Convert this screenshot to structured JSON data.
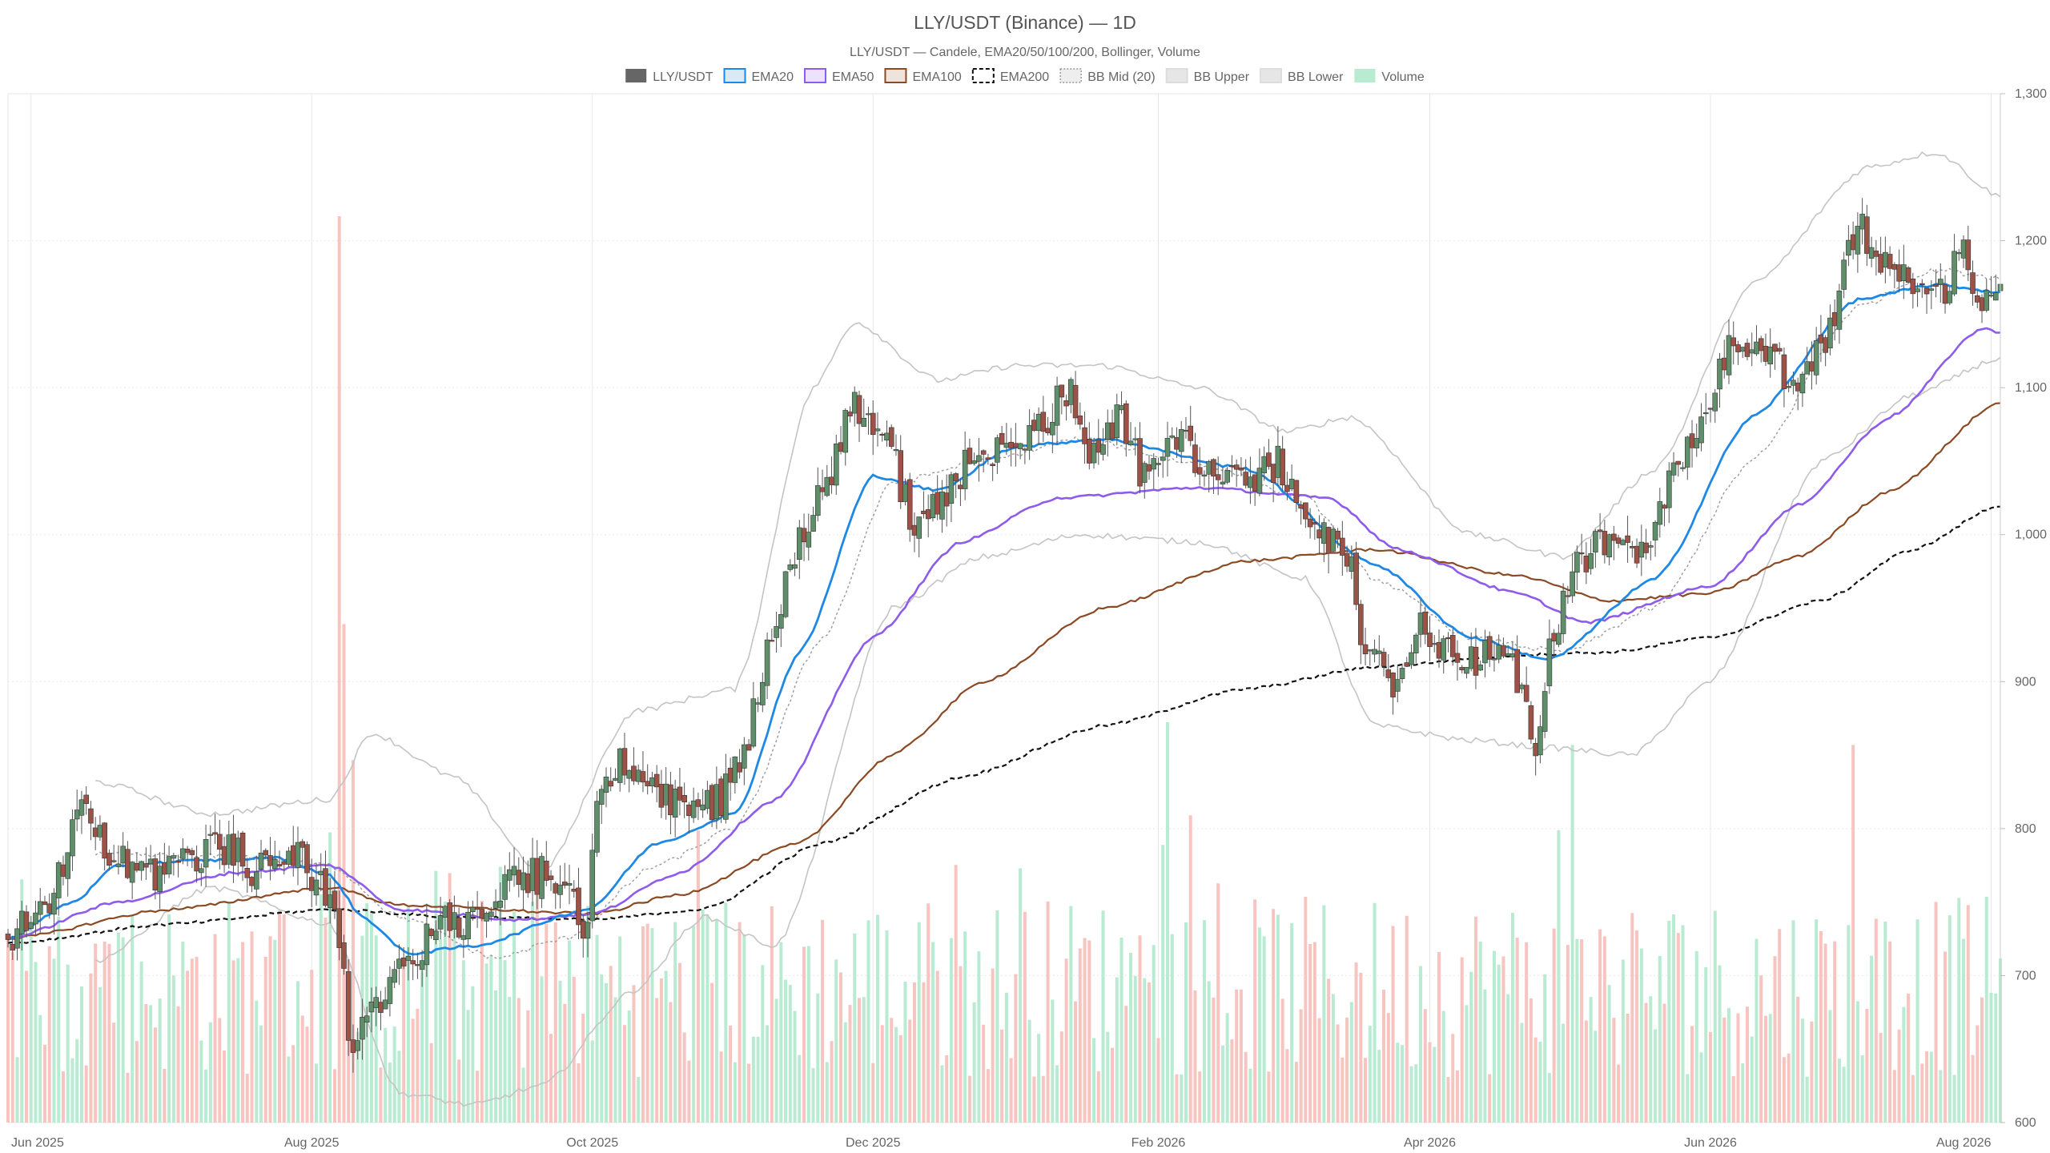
{
  "chart_data": {
    "type": "candlestick",
    "title": "LLY/USDT (Binance) — 1D",
    "subtitle": "LLY/USDT — Candele, EMA20/50/100/200, Bollinger, Volume",
    "legend": [
      {
        "label": "LLY/USDT",
        "color": "#666666",
        "style": "solid-fill"
      },
      {
        "label": "EMA20",
        "color": "#1e88e5",
        "style": "line"
      },
      {
        "label": "EMA50",
        "color": "#8e5bea",
        "style": "line"
      },
      {
        "label": "EMA100",
        "color": "#8b4a23",
        "style": "line"
      },
      {
        "label": "EMA200",
        "color": "#111111",
        "style": "dashed"
      },
      {
        "label": "BB Mid (20)",
        "color": "#999999",
        "style": "dotted"
      },
      {
        "label": "BB Upper",
        "color": "#bbbbbb",
        "style": "line"
      },
      {
        "label": "BB Lower",
        "color": "#bbbbbb",
        "style": "line"
      },
      {
        "label": "Volume",
        "color": "#b9ebd2",
        "style": "fill"
      }
    ],
    "legend_placement": "top-center",
    "y_axis": {
      "position": "right",
      "range": [
        600,
        1300
      ],
      "ticks": [
        "600",
        "700",
        "800",
        "900",
        "1,000",
        "1,100",
        "1,200",
        "1,300"
      ]
    },
    "x_axis": {
      "ticks": [
        "Jun 2025",
        "Aug 2025",
        "Oct 2025",
        "Dec 2025",
        "Feb 2026",
        "Apr 2026",
        "Jun 2026",
        "Aug 2026"
      ],
      "range": [
        "2025-05-27",
        "2026-08-03"
      ]
    },
    "grid": true,
    "colors": {
      "up": "#5f8f6a",
      "down": "#9c5246",
      "vol_up": "#b9ebd2",
      "vol_down": "#f7c4c0"
    },
    "close_anchors": [
      [
        "2025-05-27",
        725
      ],
      [
        "2025-06-05",
        755
      ],
      [
        "2025-06-12",
        812
      ],
      [
        "2025-06-20",
        780
      ],
      [
        "2025-06-28",
        770
      ],
      [
        "2025-07-06",
        782
      ],
      [
        "2025-07-14",
        788
      ],
      [
        "2025-07-20",
        772
      ],
      [
        "2025-07-27",
        790
      ],
      [
        "2025-08-02",
        765
      ],
      [
        "2025-08-06",
        740
      ],
      [
        "2025-08-10",
        650
      ],
      [
        "2025-08-15",
        680
      ],
      [
        "2025-08-22",
        710
      ],
      [
        "2025-08-30",
        735
      ],
      [
        "2025-09-07",
        745
      ],
      [
        "2025-09-15",
        765
      ],
      [
        "2025-09-22",
        770
      ],
      [
        "2025-09-30",
        735
      ],
      [
        "2025-10-02",
        815
      ],
      [
        "2025-10-07",
        845
      ],
      [
        "2025-10-14",
        830
      ],
      [
        "2025-10-21",
        810
      ],
      [
        "2025-10-29",
        820
      ],
      [
        "2025-11-03",
        855
      ],
      [
        "2025-11-08",
        920
      ],
      [
        "2025-11-14",
        990
      ],
      [
        "2025-11-21",
        1035
      ],
      [
        "2025-11-27",
        1090
      ],
      [
        "2025-12-03",
        1070
      ],
      [
        "2025-12-10",
        1010
      ],
      [
        "2025-12-17",
        1030
      ],
      [
        "2025-12-24",
        1055
      ],
      [
        "2025-12-31",
        1065
      ],
      [
        "2026-01-07",
        1075
      ],
      [
        "2026-01-12",
        1100
      ],
      [
        "2026-01-18",
        1050
      ],
      [
        "2026-01-24",
        1080
      ],
      [
        "2026-01-29",
        1040
      ],
      [
        "2026-02-04",
        1065
      ],
      [
        "2026-02-12",
        1045
      ],
      [
        "2026-02-20",
        1030
      ],
      [
        "2026-02-27",
        1050
      ],
      [
        "2026-03-05",
        1010
      ],
      [
        "2026-03-10",
        1000
      ],
      [
        "2026-03-14",
        990
      ],
      [
        "2026-03-18",
        920
      ],
      [
        "2026-03-24",
        900
      ],
      [
        "2026-03-30",
        935
      ],
      [
        "2026-04-05",
        920
      ],
      [
        "2026-04-11",
        915
      ],
      [
        "2026-04-17",
        925
      ],
      [
        "2026-04-24",
        860
      ],
      [
        "2026-04-27",
        920
      ],
      [
        "2026-05-02",
        975
      ],
      [
        "2026-05-09",
        995
      ],
      [
        "2026-05-16",
        985
      ],
      [
        "2026-05-23",
        1035
      ],
      [
        "2026-05-30",
        1080
      ],
      [
        "2026-06-06",
        1130
      ],
      [
        "2026-06-13",
        1120
      ],
      [
        "2026-06-20",
        1100
      ],
      [
        "2026-06-27",
        1140
      ],
      [
        "2026-07-03",
        1210
      ],
      [
        "2026-07-08",
        1190
      ],
      [
        "2026-07-14",
        1175
      ],
      [
        "2026-07-20",
        1160
      ],
      [
        "2026-07-26",
        1195
      ],
      [
        "2026-07-30",
        1150
      ],
      [
        "2026-08-03",
        1175
      ]
    ],
    "indicator_anchors": {
      "ema20": [
        [
          "2025-05-27",
          725
        ],
        [
          "2025-06-10",
          750
        ],
        [
          "2025-06-20",
          775
        ],
        [
          "2025-07-06",
          778
        ],
        [
          "2025-07-25",
          780
        ],
        [
          "2025-08-05",
          768
        ],
        [
          "2025-08-12",
          740
        ],
        [
          "2025-08-22",
          715
        ],
        [
          "2025-09-05",
          720
        ],
        [
          "2025-09-30",
          745
        ],
        [
          "2025-10-15",
          790
        ],
        [
          "2025-11-01",
          810
        ],
        [
          "2025-11-15",
          920
        ],
        [
          "2025-12-01",
          1040
        ],
        [
          "2025-12-15",
          1030
        ],
        [
          "2026-01-01",
          1060
        ],
        [
          "2026-01-20",
          1065
        ],
        [
          "2026-02-20",
          1045
        ],
        [
          "2026-03-20",
          980
        ],
        [
          "2026-04-10",
          930
        ],
        [
          "2026-04-27",
          915
        ],
        [
          "2026-05-20",
          970
        ],
        [
          "2026-06-10",
          1080
        ],
        [
          "2026-07-03",
          1160
        ],
        [
          "2026-07-20",
          1170
        ],
        [
          "2026-08-03",
          1165
        ]
      ],
      "ema50": [
        [
          "2025-05-27",
          725
        ],
        [
          "2025-06-20",
          750
        ],
        [
          "2025-07-15",
          770
        ],
        [
          "2025-08-05",
          775
        ],
        [
          "2025-08-20",
          745
        ],
        [
          "2025-09-15",
          738
        ],
        [
          "2025-10-01",
          742
        ],
        [
          "2025-10-20",
          770
        ],
        [
          "2025-11-10",
          820
        ],
        [
          "2025-12-01",
          930
        ],
        [
          "2025-12-20",
          995
        ],
        [
          "2026-01-10",
          1025
        ],
        [
          "2026-02-10",
          1032
        ],
        [
          "2026-03-10",
          1025
        ],
        [
          "2026-03-25",
          990
        ],
        [
          "2026-04-20",
          960
        ],
        [
          "2026-05-05",
          940
        ],
        [
          "2026-06-01",
          965
        ],
        [
          "2026-06-20",
          1020
        ],
        [
          "2026-07-10",
          1080
        ],
        [
          "2026-07-30",
          1140
        ],
        [
          "2026-08-03",
          1138
        ]
      ],
      "ema100": [
        [
          "2025-05-27",
          725
        ],
        [
          "2025-07-01",
          745
        ],
        [
          "2025-08-05",
          760
        ],
        [
          "2025-08-20",
          748
        ],
        [
          "2025-10-01",
          742
        ],
        [
          "2025-10-20",
          755
        ],
        [
          "2025-11-15",
          790
        ],
        [
          "2025-12-05",
          850
        ],
        [
          "2025-12-25",
          900
        ],
        [
          "2026-01-20",
          950
        ],
        [
          "2026-02-20",
          982
        ],
        [
          "2026-03-20",
          990
        ],
        [
          "2026-04-20",
          972
        ],
        [
          "2026-05-10",
          955
        ],
        [
          "2026-06-01",
          960
        ],
        [
          "2026-06-20",
          985
        ],
        [
          "2026-07-10",
          1030
        ],
        [
          "2026-08-03",
          1090
        ]
      ],
      "ema200": [
        [
          "2025-05-27",
          722
        ],
        [
          "2025-07-01",
          735
        ],
        [
          "2025-08-05",
          745
        ],
        [
          "2025-09-01",
          740
        ],
        [
          "2025-10-01",
          738
        ],
        [
          "2025-10-25",
          745
        ],
        [
          "2025-11-20",
          790
        ],
        [
          "2025-12-20",
          835
        ],
        [
          "2026-01-20",
          870
        ],
        [
          "2026-02-20",
          895
        ],
        [
          "2026-03-20",
          910
        ],
        [
          "2026-04-20",
          918
        ],
        [
          "2026-05-10",
          920
        ],
        [
          "2026-06-01",
          930
        ],
        [
          "2026-06-25",
          955
        ],
        [
          "2026-07-15",
          990
        ],
        [
          "2026-08-03",
          1020
        ]
      ],
      "bb_mid": [
        [
          "2025-06-15",
          782
        ],
        [
          "2025-07-15",
          781
        ],
        [
          "2025-08-05",
          775
        ],
        [
          "2025-08-20",
          740
        ],
        [
          "2025-09-10",
          712
        ],
        [
          "2025-09-25",
          725
        ],
        [
          "2025-10-15",
          775
        ],
        [
          "2025-11-01",
          800
        ],
        [
          "2025-11-20",
          930
        ],
        [
          "2025-12-05",
          1035
        ],
        [
          "2025-12-25",
          1050
        ],
        [
          "2026-01-15",
          1065
        ],
        [
          "2026-02-10",
          1048
        ],
        [
          "2026-03-05",
          1025
        ],
        [
          "2026-03-20",
          970
        ],
        [
          "2026-04-10",
          930
        ],
        [
          "2026-04-30",
          920
        ],
        [
          "2026-05-20",
          950
        ],
        [
          "2026-06-10",
          1050
        ],
        [
          "2026-07-03",
          1155
        ],
        [
          "2026-07-20",
          1180
        ],
        [
          "2026-08-03",
          1175
        ]
      ],
      "bb_upper": [
        [
          "2025-06-15",
          832
        ],
        [
          "2025-07-10",
          810
        ],
        [
          "2025-08-05",
          820
        ],
        [
          "2025-08-14",
          865
        ],
        [
          "2025-09-01",
          835
        ],
        [
          "2025-09-20",
          770
        ],
        [
          "2025-10-10",
          880
        ],
        [
          "2025-11-01",
          895
        ],
        [
          "2025-11-18",
          1100
        ],
        [
          "2025-11-27",
          1145
        ],
        [
          "2025-12-15",
          1105
        ],
        [
          "2026-01-01",
          1115
        ],
        [
          "2026-01-20",
          1115
        ],
        [
          "2026-02-10",
          1100
        ],
        [
          "2026-03-01",
          1070
        ],
        [
          "2026-03-15",
          1080
        ],
        [
          "2026-04-10",
          1000
        ],
        [
          "2026-04-30",
          985
        ],
        [
          "2026-05-20",
          1045
        ],
        [
          "2026-06-10",
          1170
        ],
        [
          "2026-07-05",
          1250
        ],
        [
          "2026-07-20",
          1260
        ],
        [
          "2026-08-03",
          1230
        ]
      ],
      "bb_lower": [
        [
          "2025-06-15",
          710
        ],
        [
          "2025-07-10",
          760
        ],
        [
          "2025-08-05",
          735
        ],
        [
          "2025-08-20",
          620
        ],
        [
          "2025-09-05",
          612
        ],
        [
          "2025-09-20",
          625
        ],
        [
          "2025-10-10",
          690
        ],
        [
          "2025-10-25",
          740
        ],
        [
          "2025-11-10",
          720
        ],
        [
          "2025-12-05",
          950
        ],
        [
          "2025-12-25",
          985
        ],
        [
          "2026-01-15",
          1000
        ],
        [
          "2026-02-10",
          995
        ],
        [
          "2026-03-05",
          970
        ],
        [
          "2026-03-20",
          870
        ],
        [
          "2026-04-10",
          860
        ],
        [
          "2026-04-27",
          855
        ],
        [
          "2026-05-15",
          850
        ],
        [
          "2026-06-01",
          900
        ],
        [
          "2026-06-25",
          1050
        ],
        [
          "2026-07-15",
          1095
        ],
        [
          "2026-08-03",
          1120
        ]
      ]
    },
    "volume_scale": {
      "max": 600
    },
    "volume_spikes": [
      [
        "2025-08-07",
        600
      ],
      [
        "2025-08-08",
        330
      ],
      [
        "2025-08-10",
        240
      ],
      [
        "2026-02-03",
        265
      ],
      [
        "2026-05-02",
        250
      ],
      [
        "2026-07-02",
        250
      ]
    ]
  }
}
